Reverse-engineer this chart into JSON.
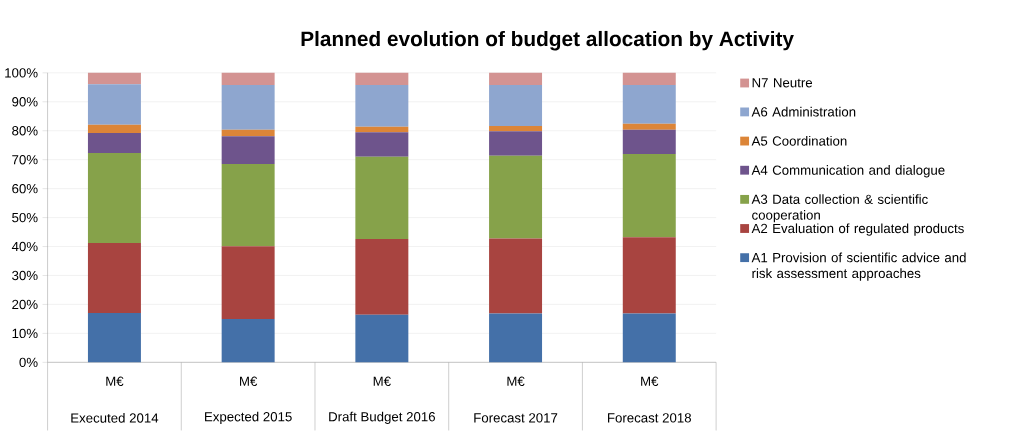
{
  "chart_data": {
    "type": "bar",
    "stacked": true,
    "title": "Planned evolution of budget allocation by Activity",
    "categories": [
      "Executed 2014",
      "Expected 2015",
      "Draft Budget 2016",
      "Forecast 2017",
      "Forecast 2018"
    ],
    "annotations": [
      "M€",
      "M€",
      "M€",
      "M€",
      "M€"
    ],
    "series": [
      {
        "name": "A1 Provision of scientific advice and risk assessment approaches",
        "color": "#4470a8",
        "values": [
          17.0,
          15.0,
          16.4,
          16.9,
          16.9
        ]
      },
      {
        "name": "A2 Evaluation of regulated products",
        "color": "#a84440",
        "values": [
          24.2,
          25.1,
          26.2,
          25.9,
          26.3
        ]
      },
      {
        "name": "A3 Data collection & scientific cooperation",
        "color": "#86a24a",
        "values": [
          31.1,
          28.4,
          28.4,
          28.6,
          28.8
        ]
      },
      {
        "name": "A4 Communication and dialogue",
        "color": "#6e548c",
        "values": [
          6.9,
          9.6,
          8.5,
          8.4,
          8.3
        ]
      },
      {
        "name": "A5 Coordination",
        "color": "#dc8538",
        "values": [
          2.9,
          2.2,
          1.9,
          1.8,
          2.1
        ]
      },
      {
        "name": "A6 Administration",
        "color": "#8ea6cf",
        "values": [
          14.0,
          15.5,
          14.4,
          14.2,
          13.4
        ]
      },
      {
        "name": "N7 Neutre",
        "color": "#d39392",
        "values": [
          3.9,
          4.2,
          4.2,
          4.2,
          4.2
        ]
      }
    ],
    "ylim": [
      0,
      100
    ],
    "yticks": [
      {
        "value": 0,
        "label": "0%"
      },
      {
        "value": 10,
        "label": "10%"
      },
      {
        "value": 20,
        "label": "20%"
      },
      {
        "value": 30,
        "label": "30%"
      },
      {
        "value": 40,
        "label": "40%"
      },
      {
        "value": 50,
        "label": "50%"
      },
      {
        "value": 60,
        "label": "60%"
      },
      {
        "value": 70,
        "label": "70%"
      },
      {
        "value": 80,
        "label": "80%"
      },
      {
        "value": 90,
        "label": "90%"
      },
      {
        "value": 100,
        "label": "100%"
      }
    ],
    "grid": "y",
    "legend": "right"
  }
}
